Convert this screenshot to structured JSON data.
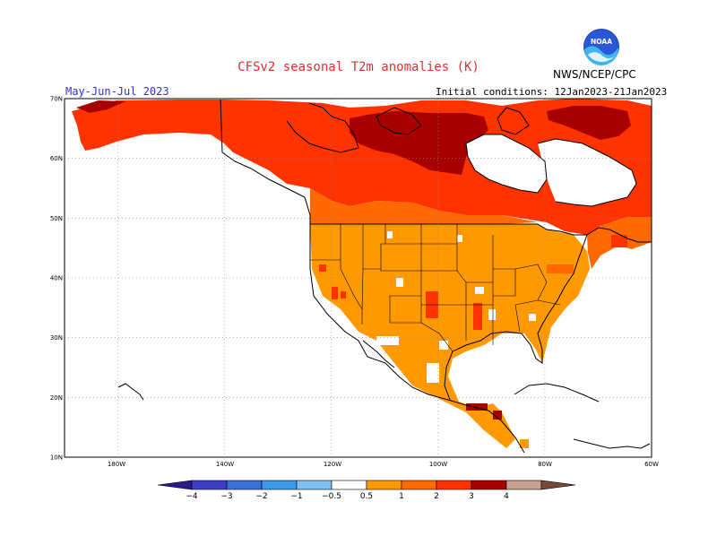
{
  "title": "CFSv2 seasonal T2m anomalies (K)",
  "agency": "NWS/NCEP/CPC",
  "logo_text": "NOAA",
  "season": "May-Jun-Jul 2023",
  "initial_conditions": "Initial conditions: 12Jan2023-21Jan2023",
  "map": {
    "projection": "equirectangular",
    "lon_range": [
      -190,
      -80
    ],
    "lat_range": [
      10,
      70
    ],
    "lat_labels": [
      "70N",
      "60N",
      "50N",
      "40N",
      "30N",
      "20N",
      "10N"
    ],
    "lon_labels": [
      "180W",
      "140W",
      "120W",
      "100W",
      "80W",
      "60W"
    ],
    "grid": "dotted"
  },
  "legend": {
    "colors": [
      "#2a1a8c",
      "#3b3fc6",
      "#3a6fd8",
      "#3f98e8",
      "#7fbff2",
      "#ffffff",
      "#ff9900",
      "#ff6a00",
      "#ff3300",
      "#a80000",
      "#c8a090",
      "#7a4838"
    ],
    "labels": [
      "−4",
      "−3",
      "−2",
      "−1",
      "−0.5",
      "0.5",
      "1",
      "2",
      "3",
      "4"
    ]
  }
}
